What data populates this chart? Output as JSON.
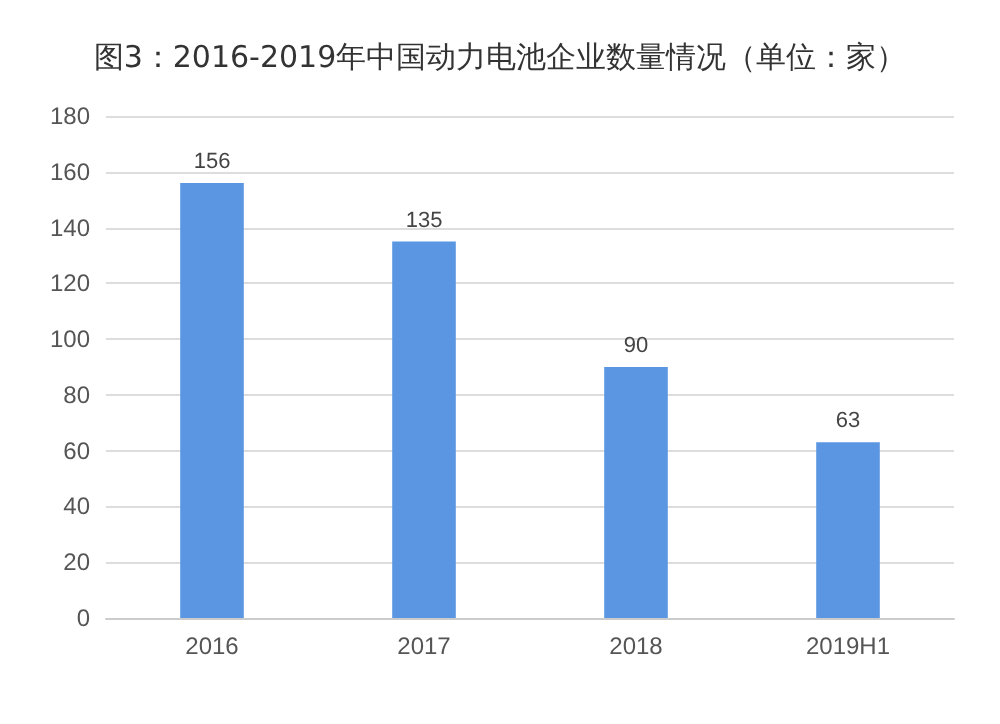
{
  "chart_data": {
    "type": "bar",
    "title": "图3：2016-2019年中国动力电池企业数量情况（单位：家）",
    "categories": [
      "2016",
      "2017",
      "2018",
      "2019H1"
    ],
    "values": [
      156,
      135,
      90,
      63
    ],
    "color": "#5b96e3",
    "ylim": [
      0,
      180
    ],
    "yticks": [
      0,
      20,
      40,
      60,
      80,
      100,
      120,
      140,
      160,
      180
    ],
    "grid": "y",
    "data_labels": true
  }
}
